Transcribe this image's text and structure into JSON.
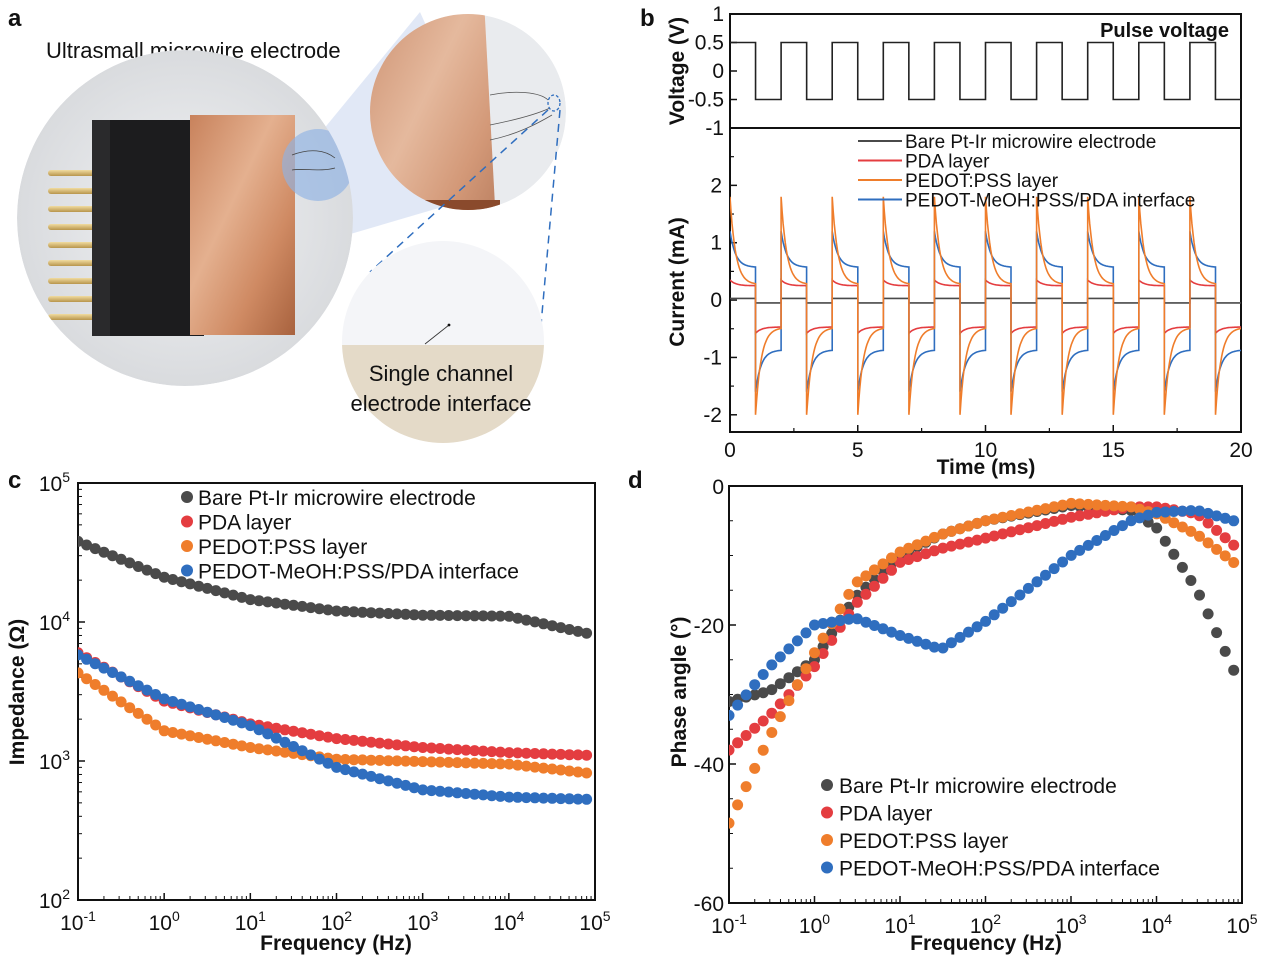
{
  "panel_a": {
    "label": "a",
    "caption_top": "Ultrasmall microwire electrode",
    "caption_bottom_line1": "Single channel",
    "caption_bottom_line2": "electrode interface"
  },
  "colors": {
    "bare": "#4a4a4a",
    "pda": "#e43d40",
    "pedot": "#ef7d2b",
    "interface": "#2f6ebf"
  },
  "chart_data": [
    {
      "id": "b_voltage",
      "panel": "b",
      "type": "line",
      "title": "Pulse voltage",
      "xlabel": "Time (ms)",
      "ylabel": "Voltage (V)",
      "xlim": [
        0,
        20
      ],
      "ylim": [
        -1,
        1
      ],
      "yticks": [
        "1",
        "0.5",
        "0",
        "-0.5",
        "-1"
      ],
      "series": [
        {
          "name": "Pulse voltage",
          "period_ms": 2,
          "high": 0.5,
          "low": -0.5,
          "duty": 0.5
        }
      ]
    },
    {
      "id": "b_current",
      "panel": "b",
      "type": "line",
      "xlabel": "Time (ms)",
      "ylabel": "Current (mA)",
      "xlim": [
        0,
        20
      ],
      "ylim": [
        -2.3,
        3
      ],
      "xticks": [
        "0",
        "5",
        "10",
        "15",
        "20"
      ],
      "yticks": [
        "2",
        "1",
        "0",
        "-1",
        "-2"
      ],
      "legend": [
        "Bare Pt-Ir microwire electrode",
        "PDA layer",
        "PEDOT:PSS layer",
        "PEDOT-MeOH:PSS/PDA interface"
      ],
      "series": [
        {
          "name": "Bare Pt-Ir microwire electrode",
          "pos_peak": 0.03,
          "pos_plateau": 0.03,
          "neg_peak": -0.05,
          "neg_plateau": -0.05
        },
        {
          "name": "PDA layer",
          "pos_peak": 0.35,
          "pos_plateau": 0.25,
          "neg_peak": -0.58,
          "neg_plateau": -0.47
        },
        {
          "name": "PEDOT:PSS layer",
          "pos_peak": 1.8,
          "pos_plateau": 0.27,
          "neg_peak": -2.0,
          "neg_plateau": -0.48
        },
        {
          "name": "PEDOT-MeOH:PSS/PDA interface",
          "pos_peak": 1.2,
          "pos_plateau": 0.57,
          "neg_peak": -1.6,
          "neg_plateau": -0.87
        }
      ]
    },
    {
      "id": "c_impedance",
      "panel": "c",
      "type": "scatter",
      "xlabel": "Frequency (Hz)",
      "ylabel": "Impedance (Ω)",
      "xscale": "log",
      "yscale": "log",
      "xlim": [
        0.1,
        100000
      ],
      "ylim": [
        100,
        100000
      ],
      "xticks": [
        "10-1",
        "100",
        "101",
        "102",
        "103",
        "104",
        "105"
      ],
      "yticks": [
        "105",
        "104",
        "103",
        "102"
      ],
      "legend_position": "top-right",
      "legend": [
        "Bare Pt-Ir microwire electrode",
        "PDA layer",
        "PEDOT:PSS layer",
        "PEDOT-MeOH:PSS/PDA interface"
      ],
      "x": [
        0.1,
        1,
        10,
        100,
        1000,
        10000,
        80000
      ],
      "series": [
        {
          "name": "Bare Pt-Ir microwire electrode",
          "values": [
            38000,
            21000,
            14500,
            12000,
            11200,
            11000,
            8300
          ]
        },
        {
          "name": "PDA layer",
          "values": [
            6000,
            2700,
            1850,
            1450,
            1250,
            1150,
            1100
          ]
        },
        {
          "name": "PEDOT:PSS layer",
          "values": [
            4300,
            1650,
            1250,
            1030,
            990,
            950,
            820
          ]
        },
        {
          "name": "PEDOT-MeOH:PSS/PDA interface",
          "values": [
            5800,
            2800,
            1800,
            900,
            620,
            550,
            530
          ]
        }
      ]
    },
    {
      "id": "d_phase",
      "panel": "d",
      "type": "scatter",
      "xlabel": "Frequency (Hz)",
      "ylabel": "Phase angle (°)",
      "xscale": "log",
      "xlim": [
        0.1,
        100000
      ],
      "ylim": [
        -60,
        0
      ],
      "xticks": [
        "10-1",
        "100",
        "101",
        "102",
        "103",
        "104",
        "105"
      ],
      "yticks": [
        "0",
        "-20",
        "-40",
        "-60"
      ],
      "legend_position": "bottom-center",
      "legend": [
        "Bare Pt-Ir microwire electrode",
        "PDA layer",
        "PEDOT:PSS layer",
        "PEDOT-MeOH:PSS/PDA interface"
      ],
      "x": [
        0.1,
        0.3,
        1,
        3,
        10,
        30,
        100,
        1000,
        5000,
        10000,
        30000,
        80000
      ],
      "series": [
        {
          "name": "Bare Pt-Ir microwire electrode",
          "values": [
            -31,
            -29.5,
            -25,
            -16,
            -10,
            -7,
            -5,
            -2.8,
            -3.5,
            -6,
            -15,
            -26.5
          ]
        },
        {
          "name": "PDA layer",
          "values": [
            -38,
            -33,
            -26,
            -17,
            -11,
            -9,
            -7.5,
            -4.5,
            -3,
            -3,
            -4,
            -8.5
          ]
        },
        {
          "name": "PEDOT:PSS layer",
          "values": [
            -48.5,
            -36,
            -24,
            -14,
            -9.5,
            -7,
            -5,
            -2.5,
            -3,
            -4,
            -7,
            -11
          ]
        },
        {
          "name": "PEDOT-MeOH:PSS/PDA interface",
          "values": [
            -33,
            -26,
            -20,
            -19,
            -21.5,
            -23.5,
            -19.5,
            -10,
            -5,
            -3.8,
            -3.5,
            -5
          ]
        }
      ]
    }
  ],
  "panel_labels": {
    "b": "b",
    "c": "c",
    "d": "d"
  }
}
